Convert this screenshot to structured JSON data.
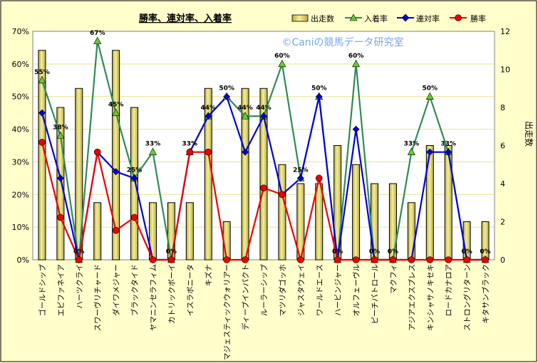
{
  "colors": {
    "background": "#ffffcc",
    "frame": "#000000",
    "gridline": "#e9e38c",
    "plot_bg": "#ffffff",
    "bar_fill_mid": "#f4eda0",
    "bar_fill_edge": "#b8ad3a",
    "bar_stroke": "#000000",
    "show": "#2e8b57",
    "show_marker": "#66cc33",
    "place": "#0000dd",
    "win": "#ee0000",
    "watermark": "#7aa6e8"
  },
  "chart_data": {
    "type": "bar+line",
    "title": "勝率、連対率、入着率",
    "watermark": "©Caniの競馬データ研究室",
    "ylabel_right": "出走数",
    "left_axis": {
      "min": 0,
      "max": 70,
      "step": 10,
      "ticks": [
        "0%",
        "10%",
        "20%",
        "30%",
        "40%",
        "50%",
        "60%",
        "70%"
      ]
    },
    "right_axis": {
      "min": 0,
      "max": 12,
      "step": 2,
      "ticks": [
        "0",
        "2",
        "4",
        "6",
        "8",
        "10",
        "12"
      ]
    },
    "categories": [
      "ゴールドシップ",
      "エピファネイア",
      "ハーツクライ",
      "スワーヴリチャード",
      "ダイワメジャー",
      "ブラックタイド",
      "ヤマニンセラフィム",
      "カトリックボーイ",
      "イスラボニータ",
      "キズナ",
      "マジェスティックウォリアー",
      "ディープインパクト",
      "ルーラーシップ",
      "マツリダゴッホ",
      "ジャスタウェイ",
      "ワールドエース",
      "ハービンジャー",
      "オルフェーヴル",
      "ピーチパトロール",
      "マクフィ",
      "アジアエクスプレス",
      "キンシャサノキセキ",
      "ロードカナロア",
      "ストロングリターン",
      "キタサンブラック"
    ],
    "legend": {
      "bars": "出走数",
      "show": "入着率",
      "place": "連対率",
      "win": "勝率"
    },
    "bars": [
      11,
      8,
      9,
      3,
      11,
      8,
      3,
      3,
      3,
      9,
      2,
      9,
      9,
      5,
      4,
      4,
      6,
      5,
      4,
      4,
      3,
      6,
      6,
      2,
      2
    ],
    "show_rate": [
      55,
      38,
      0,
      67,
      45,
      25,
      33,
      0,
      33,
      44,
      50,
      44,
      44,
      60,
      25,
      50,
      0,
      60,
      0,
      0,
      33,
      50,
      33,
      0,
      0
    ],
    "place_rate": [
      45,
      25,
      0,
      33,
      27,
      25,
      0,
      0,
      33,
      44,
      50,
      33,
      44,
      20,
      25,
      50,
      0,
      40,
      0,
      0,
      0,
      33,
      33,
      0,
      0
    ],
    "win_rate": [
      36,
      13,
      0,
      33,
      9,
      13,
      0,
      0,
      33,
      33,
      0,
      0,
      22,
      20,
      0,
      25,
      0,
      0,
      0,
      0,
      0,
      0,
      0,
      0,
      0
    ],
    "show_labels": [
      "55%",
      "38%",
      "0%",
      "67%",
      "45%",
      "25%",
      "33%",
      "0%",
      "33%",
      "44%",
      "50%",
      "44%",
      "44%",
      "60%",
      "25%",
      "50%",
      "0%",
      "60%",
      "0%",
      "0%",
      "33%",
      "50%",
      "33%",
      "0%",
      "0%"
    ]
  }
}
